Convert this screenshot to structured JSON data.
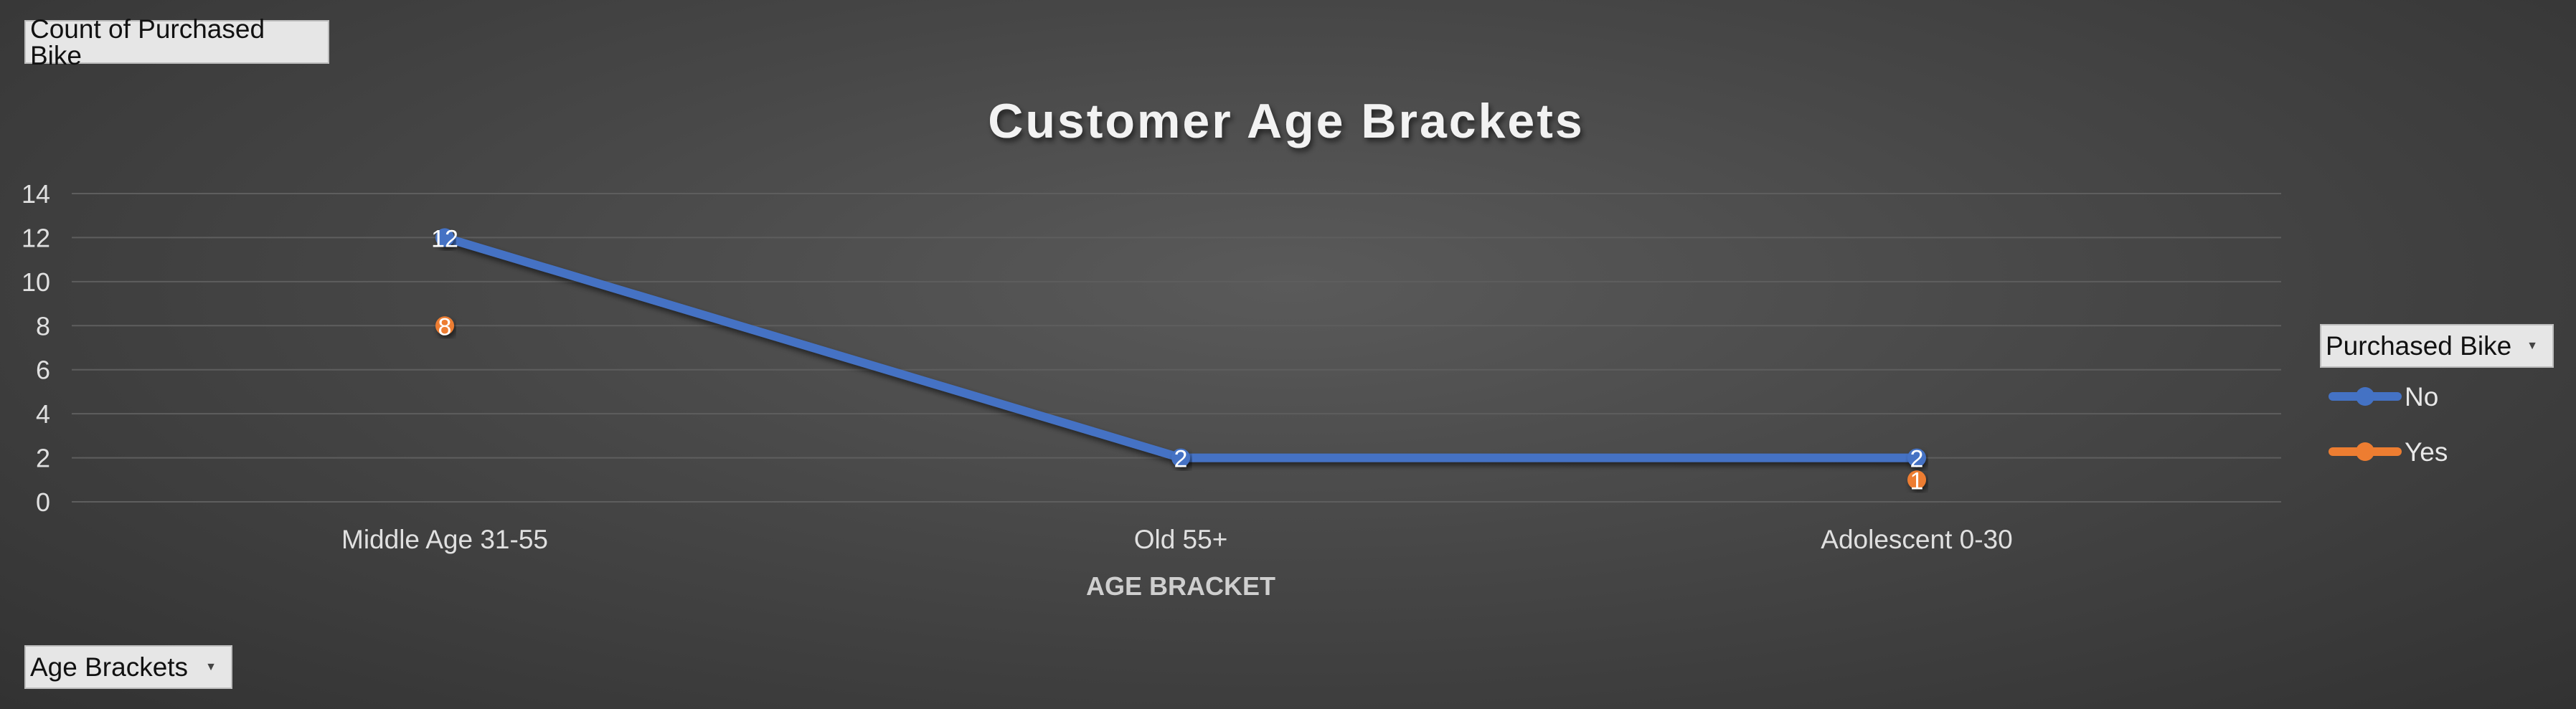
{
  "pivot": {
    "value_field": "Count of Purchased Bike",
    "axis_field": "Age Brackets",
    "legend_field": "Purchased Bike"
  },
  "colors": {
    "No": "#4472c4",
    "Yes": "#ed7d31",
    "grid": "#5e5e5e",
    "text": "#e0e0e0"
  },
  "chart_data": {
    "type": "line",
    "title": "Customer Age Brackets",
    "xlabel": "AGE BRACKET",
    "ylabel": "",
    "categories": [
      "Middle Age 31-55",
      "Old 55+",
      "Adolescent 0-30"
    ],
    "ylim": [
      0,
      14
    ],
    "yticks": [
      0,
      2,
      4,
      6,
      8,
      10,
      12,
      14
    ],
    "grid": true,
    "legend_position": "right",
    "data_labels": true,
    "series": [
      {
        "name": "No",
        "values": [
          12,
          2,
          2
        ],
        "color": "#4472c4",
        "line": true
      },
      {
        "name": "Yes",
        "values": [
          8,
          null,
          1
        ],
        "color": "#ed7d31",
        "line": false
      }
    ]
  }
}
